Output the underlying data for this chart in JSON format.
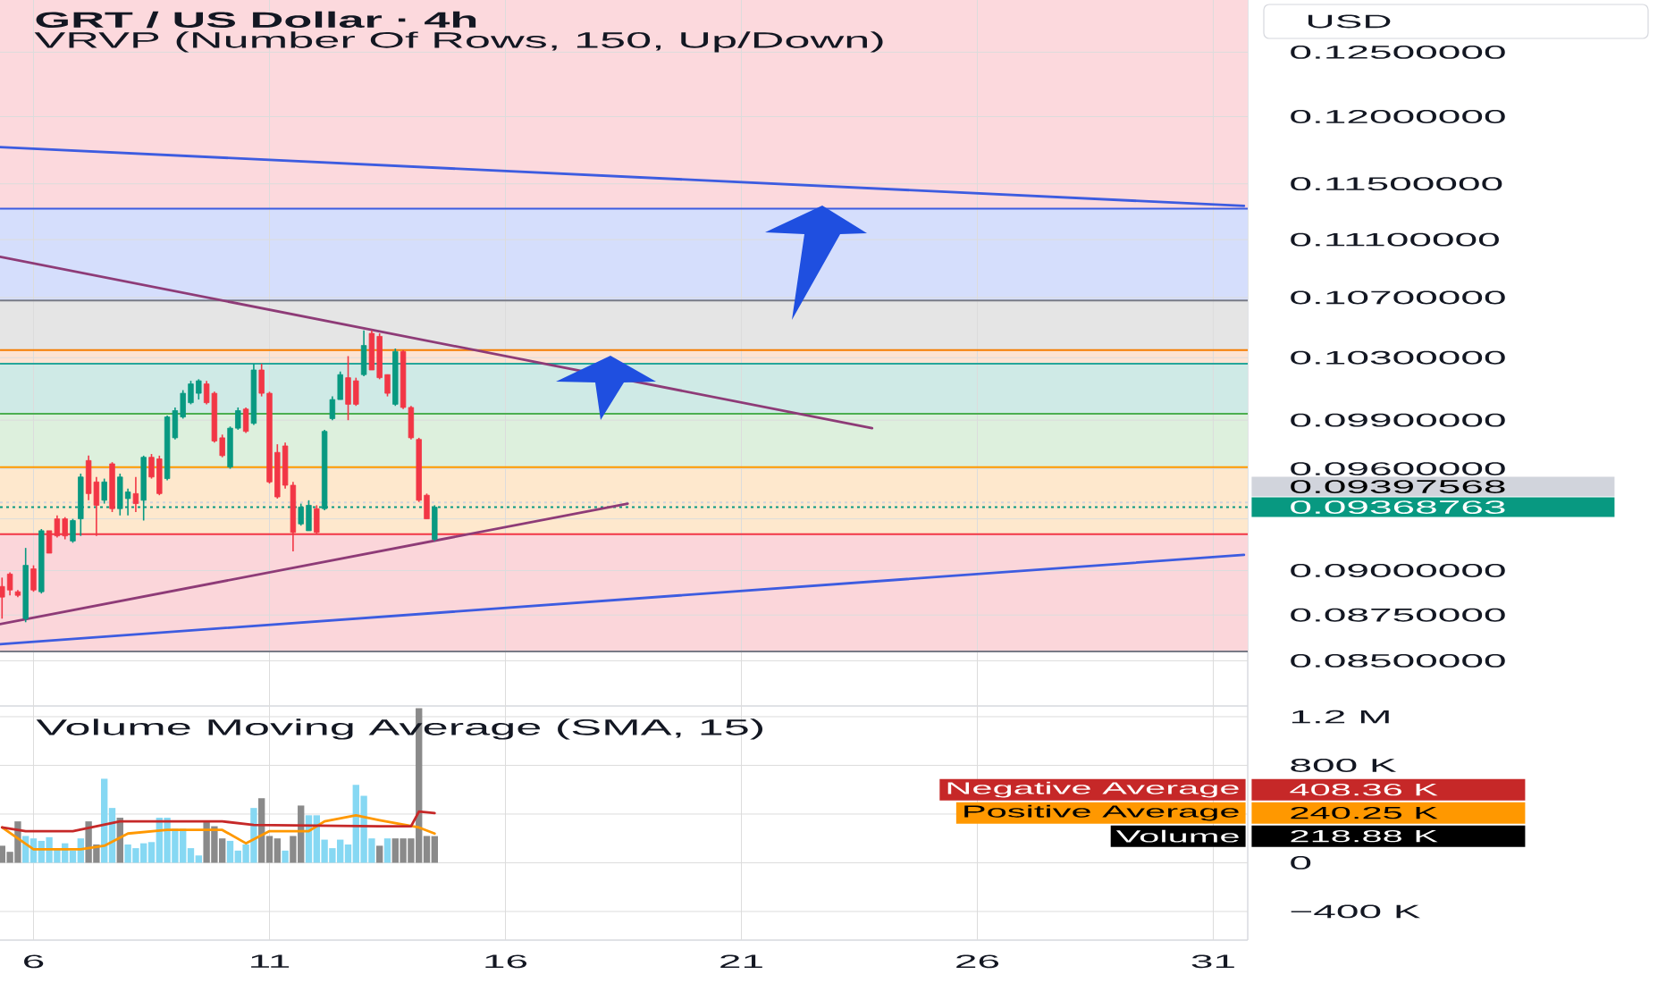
{
  "chart_data": [
    {
      "type": "candlestick",
      "title": "GRT / US Dollar · 4h",
      "subtitle": "VRVP (Number Of Rows, 150, Up/Down)",
      "ylabel": "USD",
      "x": [
        5.333,
        5.5,
        5.667,
        5.833,
        6,
        6.167,
        6.333,
        6.5,
        6.667,
        6.833,
        7,
        7.167,
        7.333,
        7.5,
        7.667,
        7.833,
        8,
        8.167,
        8.333,
        8.5,
        8.667,
        8.833,
        9,
        9.167,
        9.333,
        9.5,
        9.667,
        9.833,
        10,
        10.167,
        10.333,
        10.5,
        10.667,
        10.833,
        11,
        11.167,
        11.333,
        11.5,
        11.667,
        11.833,
        12,
        12.167,
        12.333,
        12.5,
        12.667,
        12.833,
        13,
        13.167,
        13.333,
        13.5,
        13.667,
        13.833,
        14,
        14.167,
        14.333,
        14.5
      ],
      "ohlc": [
        [
          0.0891,
          0.0896,
          0.0873,
          0.0885
        ],
        [
          0.0898,
          0.0899,
          0.0886,
          0.0889
        ],
        [
          0.0888,
          0.0889,
          0.0885,
          0.0886
        ],
        [
          0.0873,
          0.0913,
          0.0871,
          0.0903
        ],
        [
          0.0901,
          0.0903,
          0.0888,
          0.0889
        ],
        [
          0.0888,
          0.0924,
          0.0887,
          0.0923
        ],
        [
          0.0923,
          0.0923,
          0.091,
          0.091
        ],
        [
          0.093,
          0.0932,
          0.0919,
          0.092
        ],
        [
          0.093,
          0.0931,
          0.0918,
          0.092
        ],
        [
          0.0917,
          0.093,
          0.0916,
          0.0929
        ],
        [
          0.093,
          0.0957,
          0.092,
          0.0955
        ],
        [
          0.0965,
          0.0968,
          0.0941,
          0.0945
        ],
        [
          0.0952,
          0.0955,
          0.092,
          0.0938
        ],
        [
          0.0941,
          0.0954,
          0.0939,
          0.0952
        ],
        [
          0.0963,
          0.0964,
          0.0934,
          0.0936
        ],
        [
          0.0936,
          0.0957,
          0.0932,
          0.0955
        ],
        [
          0.0942,
          0.0948,
          0.0932,
          0.0946
        ],
        [
          0.0945,
          0.0955,
          0.0934,
          0.0939
        ],
        [
          0.0941,
          0.0968,
          0.0929,
          0.0967
        ],
        [
          0.0967,
          0.0969,
          0.0954,
          0.0955
        ],
        [
          0.0966,
          0.0968,
          0.0944,
          0.0945
        ],
        [
          0.0954,
          0.0993,
          0.0953,
          0.0992
        ],
        [
          0.0979,
          0.0998,
          0.0978,
          0.0996
        ],
        [
          0.0992,
          0.1009,
          0.0991,
          0.1007
        ],
        [
          0.1001,
          0.1015,
          0.1,
          0.1013
        ],
        [
          0.1007,
          0.1016,
          0.1003,
          0.1015
        ],
        [
          0.1013,
          0.1015,
          0.1,
          0.1001
        ],
        [
          0.1007,
          0.1008,
          0.0976,
          0.0977
        ],
        [
          0.0979,
          0.0981,
          0.0967,
          0.0968
        ],
        [
          0.0961,
          0.0986,
          0.096,
          0.0985
        ],
        [
          0.0985,
          0.0998,
          0.0984,
          0.0996
        ],
        [
          0.0997,
          0.0998,
          0.0982,
          0.0983
        ],
        [
          0.0988,
          0.1026,
          0.0987,
          0.1022
        ],
        [
          0.1022,
          0.1026,
          0.1005,
          0.1007
        ],
        [
          0.1007,
          0.1008,
          0.0951,
          0.0952
        ],
        [
          0.097,
          0.0975,
          0.0942,
          0.0943
        ],
        [
          0.0974,
          0.0976,
          0.0948,
          0.095
        ],
        [
          0.095,
          0.0952,
          0.0911,
          0.0922
        ],
        [
          0.0927,
          0.0939,
          0.0926,
          0.0937
        ],
        [
          0.0923,
          0.0941,
          0.0923,
          0.0938
        ],
        [
          0.0936,
          0.0938,
          0.0921,
          0.0922
        ],
        [
          0.0936,
          0.0984,
          0.0935,
          0.0983
        ],
        [
          0.0991,
          0.1005,
          0.099,
          0.1003
        ],
        [
          0.1003,
          0.1021,
          0.1003,
          0.1019
        ],
        [
          0.1017,
          0.1031,
          0.099,
          0.1
        ],
        [
          0.1015,
          0.1017,
          0.0999,
          0.1
        ],
        [
          0.1019,
          0.1048,
          0.1018,
          0.1038
        ],
        [
          0.1046,
          0.1048,
          0.1022,
          0.1022
        ],
        [
          0.1044,
          0.1046,
          0.1016,
          0.1017
        ],
        [
          0.1019,
          0.1019,
          0.1005,
          0.1007
        ],
        [
          0.1,
          0.1036,
          0.0999,
          0.1034
        ],
        [
          0.1034,
          0.1035,
          0.0997,
          0.0998
        ],
        [
          0.0998,
          0.0999,
          0.0978,
          0.0979
        ],
        [
          0.0978,
          0.0979,
          0.094,
          0.0941
        ],
        [
          0.0944,
          0.0945,
          0.093,
          0.093
        ],
        [
          0.0918,
          0.0938,
          0.0917,
          0.09368763
        ]
      ],
      "colors": [
        "#f23645",
        "#f23645",
        "#f23645",
        "#089981",
        "#f23645",
        "#089981",
        "#f23645",
        "#f23645",
        "#f23645",
        "#089981",
        "#089981",
        "#f23645",
        "#f23645",
        "#089981",
        "#f23645",
        "#089981",
        "#089981",
        "#f23645",
        "#089981",
        "#f23645",
        "#f23645",
        "#089981",
        "#089981",
        "#089981",
        "#089981",
        "#089981",
        "#f23645",
        "#f23645",
        "#f23645",
        "#089981",
        "#089981",
        "#f23645",
        "#089981",
        "#f23645",
        "#f23645",
        "#f23645",
        "#f23645",
        "#f23645",
        "#089981",
        "#089981",
        "#f23645",
        "#089981",
        "#089981",
        "#089981",
        "#f23645",
        "#f23645",
        "#089981",
        "#f23645",
        "#f23645",
        "#f23645",
        "#089981",
        "#f23645",
        "#f23645",
        "#f23645",
        "#f23645",
        "#089981"
      ],
      "series": [
        {
          "type": "line",
          "color": "#3d5ce0",
          "x": [
            5.29,
            31.65
          ],
          "values": [
            0.1177,
            0.1134
          ]
        },
        {
          "type": "line",
          "color": "#8e3b77",
          "x": [
            5.29,
            23.77
          ],
          "values": [
            0.1098,
            0.0985
          ]
        },
        {
          "type": "line",
          "color": "#8e3b77",
          "x": [
            5.29,
            18.59
          ],
          "values": [
            0.087,
            0.0939
          ]
        },
        {
          "type": "line",
          "color": "#3d5ce0",
          "x": [
            5.29,
            31.65
          ],
          "values": [
            0.0859,
            0.0909
          ]
        }
      ],
      "bands": [
        {
          "axis": "y",
          "from": 0.1132,
          "to": 0.1292,
          "color": "#fcd9dd"
        },
        {
          "axis": "y",
          "from": 0.1068,
          "to": 0.1132,
          "color": "#d5defc"
        },
        {
          "axis": "y",
          "from": 0.1035,
          "to": 0.1068,
          "color": "#e5e5e5"
        },
        {
          "axis": "y",
          "from": 0.1026,
          "to": 0.1035,
          "color": "#fde3d2"
        },
        {
          "axis": "y",
          "from": 0.0994,
          "to": 0.1026,
          "color": "#cfeae6"
        },
        {
          "axis": "y",
          "from": 0.0961,
          "to": 0.0994,
          "color": "#ddf0dd"
        },
        {
          "axis": "y",
          "from": 0.0921,
          "to": 0.0961,
          "color": "#fee8cd"
        },
        {
          "axis": "y",
          "from": 0.0855,
          "to": 0.0921,
          "color": "#fbd6da"
        }
      ],
      "ref_lines": [
        {
          "axis": "y",
          "value": 0.1132,
          "color": "#3d5ce0"
        },
        {
          "axis": "y",
          "value": 0.1068,
          "color": "#787b86"
        },
        {
          "axis": "y",
          "value": 0.1035,
          "color": "#f57c00"
        },
        {
          "axis": "y",
          "value": 0.1026,
          "color": "#26a69a"
        },
        {
          "axis": "y",
          "value": 0.0994,
          "color": "#4caf50"
        },
        {
          "axis": "y",
          "value": 0.0961,
          "color": "#ff9800"
        },
        {
          "axis": "y",
          "value": 0.0921,
          "color": "#f23645"
        },
        {
          "axis": "y",
          "value": 0.0855,
          "color": "#787b86"
        },
        {
          "axis": "y",
          "value": 0.09397568,
          "label": "0.09397568",
          "color": "#d1d4dc",
          "line_style": "dotted"
        },
        {
          "axis": "y",
          "value": 0.09368763,
          "label": "0.09368763",
          "color": "#089981",
          "line_style": "dotted"
        }
      ],
      "xlim": [
        5.29,
        31.73
      ],
      "xticks": [
        6,
        11,
        16,
        21,
        26,
        31
      ],
      "ylim": [
        0.0826,
        0.1292
      ],
      "yticks": [
        {
          "value": 0.125,
          "label": "0.12500000"
        },
        {
          "value": 0.12,
          "label": "0.12000000"
        },
        {
          "value": 0.115,
          "label": "0.11500000"
        },
        {
          "value": 0.111,
          "label": "0.11100000"
        },
        {
          "value": 0.107,
          "label": "0.10700000"
        },
        {
          "value": 0.103,
          "label": "0.10300000"
        },
        {
          "value": 0.099,
          "label": "0.09900000"
        },
        {
          "value": 0.096,
          "label": "0.09600000"
        },
        {
          "value": 0.093,
          "label": null
        },
        {
          "value": 0.09,
          "label": "0.09000000"
        },
        {
          "value": 0.0875,
          "label": "0.08750000"
        },
        {
          "value": 0.085,
          "label": "0.08500000"
        }
      ],
      "log": "y",
      "grid": true,
      "tick_labels": "y"
    },
    {
      "type": "bar",
      "title": "Volume Moving Average (SMA, 15)",
      "x": [
        5.333,
        5.5,
        5.667,
        5.833,
        6,
        6.167,
        6.333,
        6.5,
        6.667,
        6.833,
        7,
        7.167,
        7.333,
        7.5,
        7.667,
        7.833,
        8,
        8.167,
        8.333,
        8.5,
        8.667,
        8.833,
        9,
        9.167,
        9.333,
        9.5,
        9.667,
        9.833,
        10,
        10.167,
        10.333,
        10.5,
        10.667,
        10.833,
        11,
        11.167,
        11.333,
        11.5,
        11.667,
        11.833,
        12,
        12.167,
        12.333,
        12.5,
        12.667,
        12.833,
        13,
        13.167,
        13.333,
        13.5,
        13.667,
        13.833,
        14,
        14.167,
        14.333,
        14.5
      ],
      "series": [
        {
          "name": "Volume",
          "type": "bar",
          "colors": [
            "#8a8a8a",
            "#8a8a8a",
            "#8a8a8a",
            "#86d8f3",
            "#86d8f3",
            "#86d8f3",
            "#86d8f3",
            "#86d8f3",
            "#86d8f3",
            "#86d8f3",
            "#86d8f3",
            "#8a8a8a",
            "#8a8a8a",
            "#86d8f3",
            "#86d8f3",
            "#8a8a8a",
            "#86d8f3",
            "#86d8f3",
            "#86d8f3",
            "#86d8f3",
            "#86d8f3",
            "#86d8f3",
            "#86d8f3",
            "#86d8f3",
            "#86d8f3",
            "#86d8f3",
            "#8a8a8a",
            "#8a8a8a",
            "#8a8a8a",
            "#86d8f3",
            "#86d8f3",
            "#86d8f3",
            "#86d8f3",
            "#8a8a8a",
            "#8a8a8a",
            "#8a8a8a",
            "#86d8f3",
            "#8a8a8a",
            "#8a8a8a",
            "#86d8f3",
            "#86d8f3",
            "#86d8f3",
            "#86d8f3",
            "#86d8f3",
            "#86d8f3",
            "#86d8f3",
            "#86d8f3",
            "#86d8f3",
            "#8a8a8a",
            "#86d8f3",
            "#8a8a8a",
            "#8a8a8a",
            "#8a8a8a",
            "#8a8a8a",
            "#8a8a8a",
            "#8a8a8a"
          ],
          "values": [
            140000,
            90000,
            340000,
            220000,
            200000,
            180000,
            210000,
            120000,
            160000,
            100000,
            200000,
            340000,
            150000,
            690000,
            450000,
            370000,
            150000,
            120000,
            160000,
            170000,
            370000,
            370000,
            280000,
            280000,
            120000,
            60000,
            340000,
            300000,
            200000,
            180000,
            100000,
            150000,
            450000,
            530000,
            220000,
            200000,
            100000,
            220000,
            470000,
            390000,
            390000,
            190000,
            120000,
            190000,
            150000,
            640000,
            550000,
            200000,
            140000,
            200000,
            200000,
            200000,
            200000,
            1270000,
            220000,
            218880
          ]
        },
        {
          "name": "Positive Average",
          "type": "line",
          "color": "#ff9800",
          "x": [
            5.333,
            6,
            7,
            7.5,
            8,
            8.833,
            10,
            10.5,
            11,
            11.833,
            12.167,
            12.833,
            13.333,
            14.167,
            14.5
          ],
          "values": [
            290000,
            110000,
            110000,
            140000,
            240000,
            270000,
            270000,
            160000,
            260000,
            260000,
            340000,
            390000,
            350000,
            290000,
            240250
          ]
        },
        {
          "name": "Negative Average",
          "type": "line",
          "color": "#c62828",
          "x": [
            5.333,
            5.833,
            6.833,
            7.333,
            7.833,
            10,
            10.667,
            13.333,
            14,
            14.167,
            14.5
          ],
          "values": [
            290000,
            260000,
            260000,
            300000,
            340000,
            340000,
            310000,
            300000,
            300000,
            420000,
            408360
          ]
        }
      ],
      "annotations": [
        "218.88 K",
        "240.25 K",
        "408.36 K"
      ],
      "xlim": [
        5.29,
        31.73
      ],
      "xticks": [
        6,
        11,
        16,
        21,
        26,
        31
      ],
      "ylim": [
        -635000,
        1288000
      ],
      "yticks": [
        {
          "value": 1200000,
          "label": "1.2 M"
        },
        {
          "value": 800000,
          "label": "800 K"
        },
        {
          "value": 400000,
          "label": null
        },
        {
          "value": 0,
          "label": "0"
        },
        {
          "value": -400000,
          "label": "−400 K"
        }
      ],
      "grid": true,
      "legend": "right"
    }
  ]
}
